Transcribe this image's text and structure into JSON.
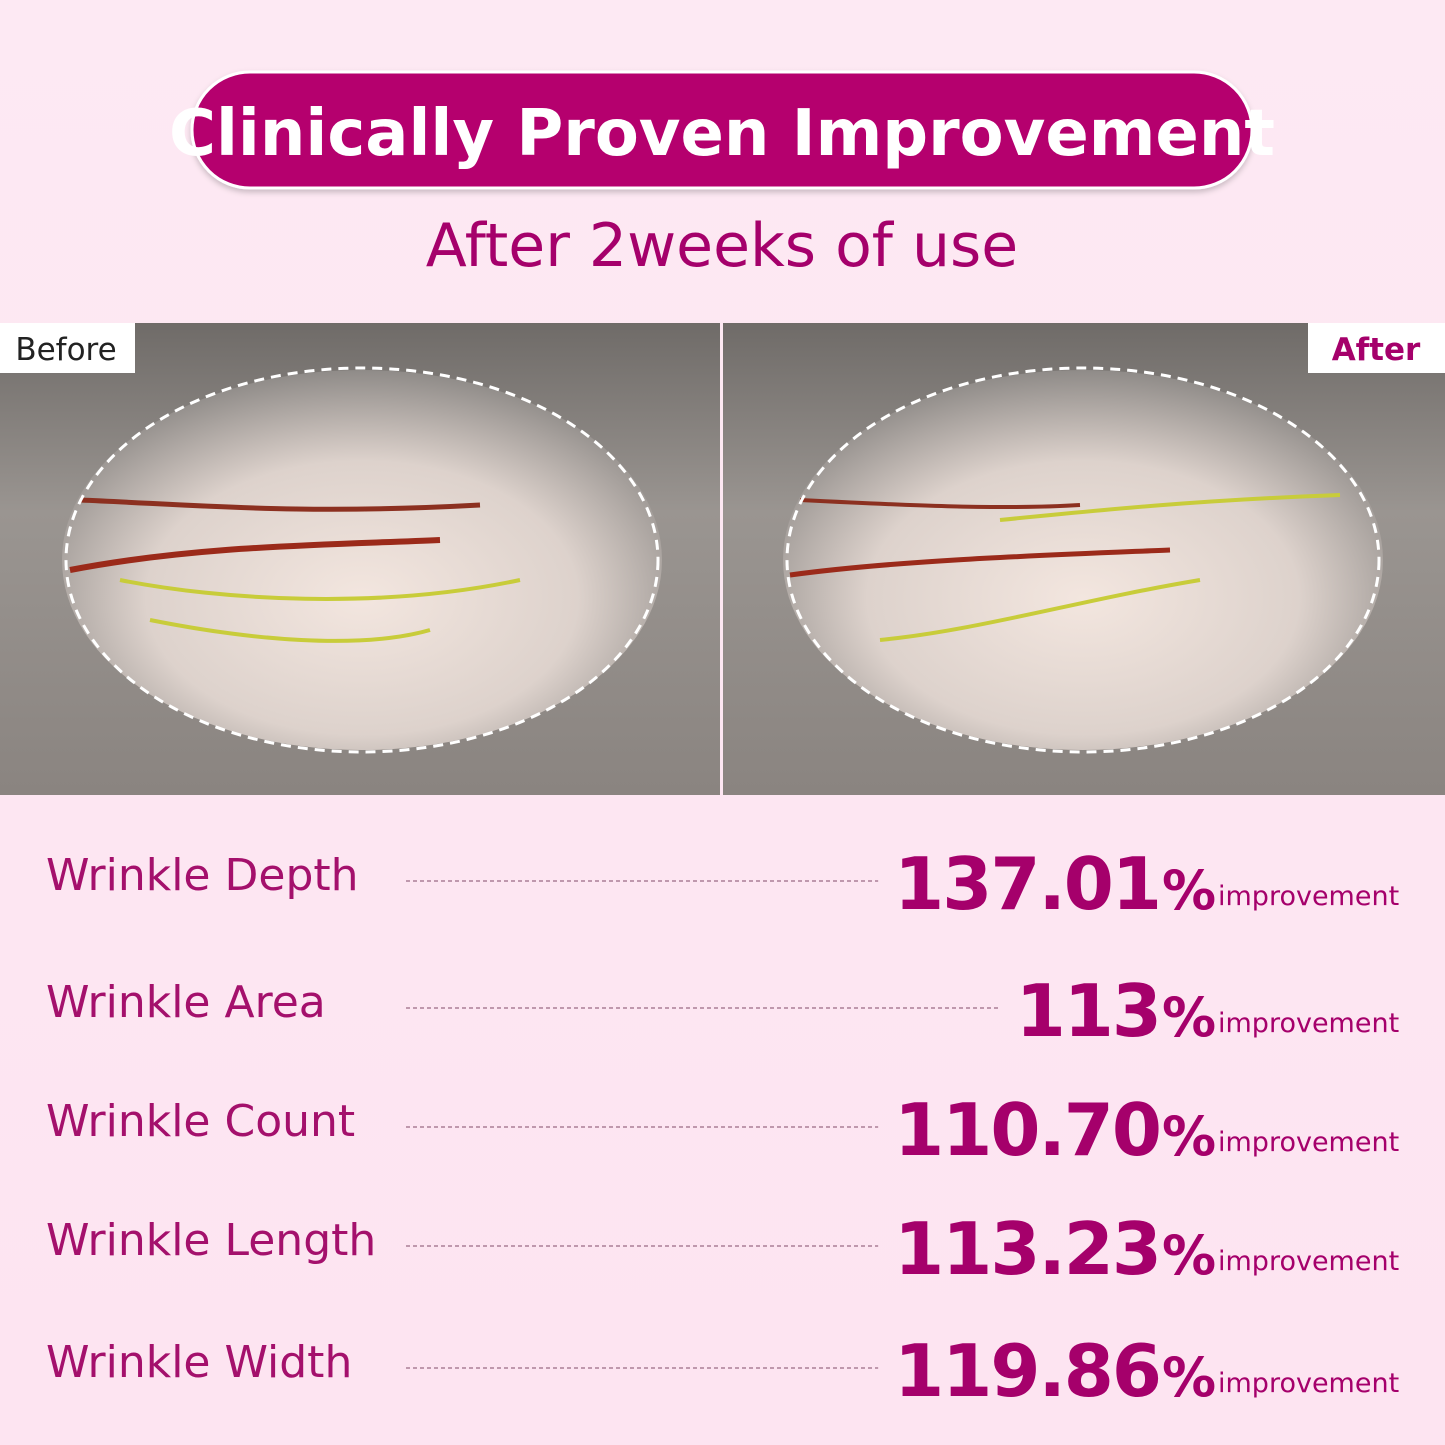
{
  "header": {
    "title": "Clinically Proven Improvement",
    "subtitle": "After 2weeks of use"
  },
  "images": {
    "before": {
      "label": "Before"
    },
    "after": {
      "label": "After"
    }
  },
  "metrics": [
    {
      "label": "Wrinkle Depth",
      "value": "137.01",
      "unit": "%",
      "note": "improvement"
    },
    {
      "label": "Wrinkle Area",
      "value": "113",
      "unit": "%",
      "note": "improvement"
    },
    {
      "label": "Wrinkle Count",
      "value": "110.70",
      "unit": "%",
      "note": "improvement"
    },
    {
      "label": "Wrinkle Length",
      "value": "113.23",
      "unit": "%",
      "note": "improvement"
    },
    {
      "label": "Wrinkle Width",
      "value": "119.86",
      "unit": "%",
      "note": "improvement"
    }
  ]
}
